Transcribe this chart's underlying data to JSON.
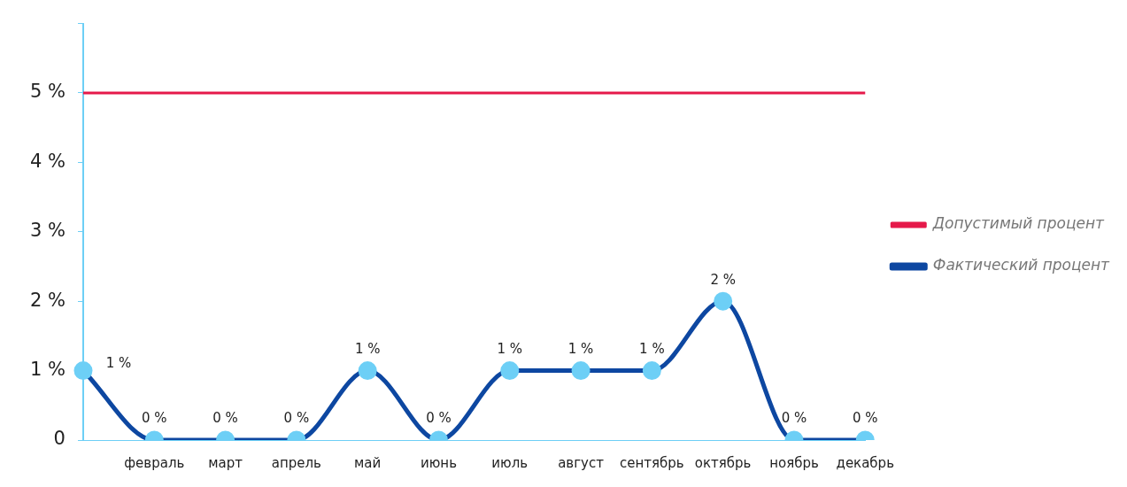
{
  "chart_data": {
    "type": "line",
    "categories": [
      null,
      "февраль",
      "март",
      "апрель",
      "май",
      "июнь",
      "июль",
      "август",
      "сентябрь",
      "октябрь",
      "ноябрь",
      "декабрь"
    ],
    "series": [
      {
        "name": "Допустимый процент",
        "color": "#e5194a",
        "values": [
          5,
          5,
          5,
          5,
          5,
          5,
          5,
          5,
          5,
          5,
          5,
          5
        ],
        "marker": "none"
      },
      {
        "name": "Фактический процент",
        "color": "#0d47a1",
        "values": [
          1,
          0,
          0,
          0,
          1,
          0,
          1,
          1,
          1,
          2,
          0,
          0
        ],
        "marker": "circle",
        "value_labels": [
          "1 %",
          "0 %",
          "0 %",
          "0 %",
          "1 %",
          "0 %",
          "1 %",
          "1 %",
          "1 %",
          "2 %",
          "0 %",
          "0 %"
        ]
      }
    ],
    "ylim": [
      0,
      6
    ],
    "yticks": [
      0,
      {
        "value": 1,
        "label": "1 %"
      },
      {
        "value": 2,
        "label": "2 %"
      },
      {
        "value": 3,
        "label": "3 %"
      },
      {
        "value": 4,
        "label": "4 %"
      },
      {
        "value": 5,
        "label": "5 %"
      },
      {
        "value": 6,
        "label": null
      }
    ],
    "grid": false,
    "legend": "right"
  }
}
